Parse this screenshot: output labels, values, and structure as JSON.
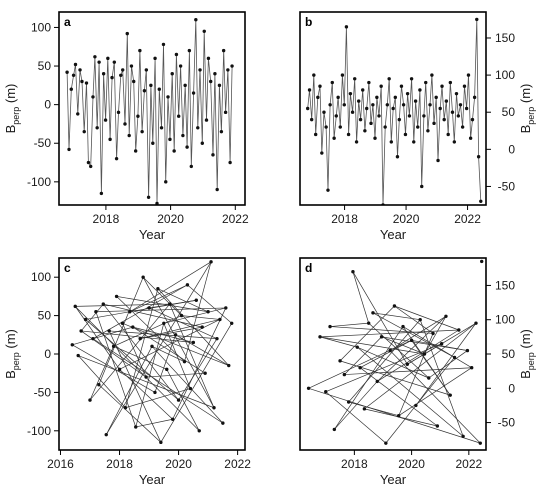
{
  "chart_data": [
    {
      "type": "line",
      "label": "a",
      "xlabel": "Year",
      "ylabel": "B",
      "ylabel_sub": "perp",
      "ylabel_unit": " (m)",
      "yaxis_side": "left",
      "xlim": [
        2016.55,
        2022.3
      ],
      "ylim": [
        -130,
        120
      ],
      "xticks": [
        2018,
        2020,
        2022
      ],
      "yticks": [
        -100,
        -50,
        0,
        50,
        100
      ],
      "series_style": "chronological",
      "x": [
        2016.8,
        2016.86,
        2016.93,
        2017.0,
        2017.06,
        2017.13,
        2017.2,
        2017.26,
        2017.33,
        2017.4,
        2017.46,
        2017.53,
        2017.6,
        2017.66,
        2017.73,
        2017.79,
        2017.86,
        2017.93,
        2017.99,
        2018.06,
        2018.13,
        2018.19,
        2018.26,
        2018.33,
        2018.39,
        2018.46,
        2018.52,
        2018.59,
        2018.66,
        2018.72,
        2018.79,
        2018.86,
        2018.92,
        2018.99,
        2019.05,
        2019.12,
        2019.19,
        2019.25,
        2019.32,
        2019.39,
        2019.45,
        2019.52,
        2019.58,
        2019.65,
        2019.72,
        2019.78,
        2019.85,
        2019.92,
        2019.98,
        2020.05,
        2020.11,
        2020.18,
        2020.25,
        2020.31,
        2020.38,
        2020.45,
        2020.51,
        2020.58,
        2020.64,
        2020.71,
        2020.78,
        2020.84,
        2020.91,
        2020.98,
        2021.04,
        2021.11,
        2021.17,
        2021.24,
        2021.31,
        2021.37,
        2021.44,
        2021.51,
        2021.57,
        2021.64,
        2021.7,
        2021.77,
        2021.84,
        2021.9
      ],
      "y": [
        42,
        -58,
        20,
        38,
        52,
        -12,
        45,
        30,
        -35,
        28,
        -75,
        -80,
        10,
        62,
        -30,
        55,
        -115,
        40,
        -20,
        60,
        -45,
        35,
        55,
        -70,
        -10,
        38,
        45,
        -25,
        92,
        -40,
        50,
        30,
        -60,
        -15,
        70,
        -35,
        18,
        45,
        -120,
        25,
        -50,
        60,
        -128,
        20,
        -30,
        78,
        -100,
        10,
        -45,
        40,
        -60,
        65,
        -15,
        50,
        -40,
        25,
        -55,
        70,
        -80,
        15,
        110,
        -30,
        45,
        -50,
        95,
        -20,
        60,
        30,
        -65,
        40,
        -110,
        25,
        -35,
        70,
        -10,
        45,
        -75,
        50
      ]
    },
    {
      "type": "line",
      "label": "b",
      "xlabel": "Year",
      "ylabel": "B",
      "ylabel_sub": "perp",
      "ylabel_unit": " (m)",
      "yaxis_side": "right",
      "xlim": [
        2016.55,
        2022.6
      ],
      "ylim": [
        -75,
        185
      ],
      "xticks": [
        2018,
        2020,
        2022
      ],
      "yticks": [
        -50,
        0,
        50,
        100,
        150
      ],
      "series_style": "chronological",
      "x": [
        2016.8,
        2016.86,
        2016.93,
        2017.0,
        2017.06,
        2017.13,
        2017.2,
        2017.26,
        2017.33,
        2017.4,
        2017.46,
        2017.53,
        2017.6,
        2017.66,
        2017.73,
        2017.79,
        2017.86,
        2017.93,
        2017.99,
        2018.06,
        2018.13,
        2018.19,
        2018.26,
        2018.33,
        2018.39,
        2018.46,
        2018.52,
        2018.59,
        2018.66,
        2018.72,
        2018.79,
        2018.86,
        2018.92,
        2018.99,
        2019.05,
        2019.12,
        2019.19,
        2019.25,
        2019.32,
        2019.39,
        2019.45,
        2019.52,
        2019.58,
        2019.65,
        2019.72,
        2019.78,
        2019.85,
        2019.92,
        2019.98,
        2020.05,
        2020.11,
        2020.18,
        2020.25,
        2020.31,
        2020.38,
        2020.45,
        2020.51,
        2020.58,
        2020.64,
        2020.71,
        2020.78,
        2020.84,
        2020.91,
        2020.98,
        2021.04,
        2021.11,
        2021.17,
        2021.24,
        2021.31,
        2021.37,
        2021.44,
        2021.51,
        2021.57,
        2021.64,
        2021.7,
        2021.77,
        2021.84,
        2021.9,
        2021.97,
        2022.03,
        2022.1,
        2022.16,
        2022.23,
        2022.3,
        2022.36,
        2022.43
      ],
      "y": [
        55,
        80,
        40,
        100,
        20,
        70,
        85,
        -5,
        50,
        30,
        -55,
        60,
        90,
        15,
        45,
        70,
        30,
        100,
        60,
        165,
        20,
        75,
        50,
        95,
        10,
        65,
        40,
        80,
        25,
        55,
        90,
        35,
        60,
        15,
        70,
        45,
        85,
        -75,
        30,
        60,
        95,
        10,
        55,
        70,
        -10,
        40,
        85,
        60,
        20,
        75,
        45,
        95,
        10,
        65,
        30,
        80,
        -50,
        45,
        90,
        25,
        60,
        100,
        35,
        70,
        -15,
        55,
        85,
        40,
        65,
        20,
        90,
        50,
        10,
        75,
        45,
        60,
        30,
        85,
        55,
        100,
        15,
        40,
        70,
        175,
        -10,
        -70
      ]
    },
    {
      "type": "line",
      "label": "c",
      "xlabel": "Year",
      "ylabel": "B",
      "ylabel_sub": "perp",
      "ylabel_unit": " (m)",
      "yaxis_side": "left",
      "xlim": [
        2015.95,
        2022.25
      ],
      "ylim": [
        -125,
        125
      ],
      "xticks": [
        2016,
        2018,
        2020,
        2022
      ],
      "yticks": [
        -100,
        -50,
        0,
        50,
        100
      ],
      "series_style": "network",
      "x": [
        2016.4,
        2016.5,
        2016.6,
        2016.7,
        2016.85,
        2017.0,
        2017.1,
        2017.2,
        2017.3,
        2017.45,
        2017.55,
        2017.65,
        2017.8,
        2017.9,
        2018.0,
        2018.1,
        2018.2,
        2018.35,
        2018.45,
        2018.55,
        2018.7,
        2018.8,
        2018.9,
        2019.0,
        2019.1,
        2019.2,
        2019.3,
        2019.4,
        2019.5,
        2019.6,
        2019.7,
        2019.8,
        2019.9,
        2020.0,
        2020.1,
        2020.2,
        2020.3,
        2020.4,
        2020.5,
        2020.6,
        2020.7,
        2020.8,
        2020.9,
        2021.0,
        2021.1,
        2021.2,
        2021.3,
        2021.4,
        2021.5,
        2021.6,
        2021.7,
        2021.8
      ],
      "y": [
        12,
        62,
        -2,
        30,
        45,
        -60,
        20,
        55,
        -40,
        65,
        -105,
        30,
        10,
        75,
        -20,
        40,
        -70,
        55,
        35,
        -95,
        20,
        100,
        -30,
        60,
        10,
        -50,
        85,
        -115,
        40,
        -20,
        65,
        -85,
        25,
        -60,
        50,
        -10,
        90,
        -45,
        15,
        70,
        -100,
        35,
        -25,
        55,
        120,
        -70,
        20,
        45,
        -90,
        60,
        -15,
        40
      ],
      "edges": [
        [
          0,
          18
        ],
        [
          1,
          30
        ],
        [
          1,
          40
        ],
        [
          2,
          45
        ],
        [
          3,
          22
        ],
        [
          4,
          33
        ],
        [
          5,
          12
        ],
        [
          6,
          36
        ],
        [
          7,
          49
        ],
        [
          8,
          27
        ],
        [
          9,
          41
        ],
        [
          10,
          24
        ],
        [
          11,
          46
        ],
        [
          12,
          29
        ],
        [
          13,
          35
        ],
        [
          14,
          31
        ],
        [
          15,
          50
        ],
        [
          16,
          26
        ],
        [
          17,
          44
        ],
        [
          18,
          38
        ],
        [
          19,
          28
        ],
        [
          20,
          47
        ],
        [
          21,
          34
        ],
        [
          22,
          42
        ],
        [
          23,
          39
        ],
        [
          24,
          48
        ],
        [
          25,
          32
        ],
        [
          26,
          43
        ],
        [
          27,
          51
        ],
        [
          28,
          37
        ],
        [
          29,
          40
        ],
        [
          30,
          45
        ],
        [
          31,
          49
        ],
        [
          32,
          50
        ],
        [
          33,
          46
        ],
        [
          34,
          47
        ],
        [
          35,
          44
        ],
        [
          36,
          51
        ],
        [
          0,
          25
        ],
        [
          3,
          38
        ],
        [
          5,
          30
        ],
        [
          7,
          19
        ],
        [
          9,
          33
        ],
        [
          11,
          27
        ],
        [
          13,
          43
        ],
        [
          15,
          22
        ],
        [
          17,
          36
        ],
        [
          20,
          41
        ],
        [
          23,
          46
        ],
        [
          2,
          16
        ],
        [
          4,
          39
        ],
        [
          6,
          48
        ],
        [
          8,
          21
        ],
        [
          10,
          44
        ],
        [
          12,
          34
        ],
        [
          14,
          47
        ],
        [
          16,
          37
        ],
        [
          18,
          42
        ],
        [
          19,
          31
        ],
        [
          21,
          45
        ],
        [
          24,
          35
        ],
        [
          26,
          50
        ],
        [
          28,
          49
        ],
        [
          1,
          14
        ],
        [
          3,
          9
        ]
      ]
    },
    {
      "type": "line",
      "label": "d",
      "xlabel": "Year",
      "ylabel": "B",
      "ylabel_sub": "perp",
      "ylabel_unit": " (m)",
      "yaxis_side": "right",
      "xlim": [
        2016.1,
        2022.6
      ],
      "ylim": [
        -90,
        190
      ],
      "xticks": [
        2018,
        2020,
        2022
      ],
      "yticks": [
        -50,
        0,
        50,
        100,
        150
      ],
      "series_style": "network",
      "x": [
        2016.4,
        2016.8,
        2017.0,
        2017.15,
        2017.3,
        2017.5,
        2017.65,
        2017.8,
        2017.95,
        2018.1,
        2018.2,
        2018.35,
        2018.5,
        2018.65,
        2018.8,
        2018.95,
        2019.1,
        2019.25,
        2019.4,
        2019.55,
        2019.7,
        2019.85,
        2020.0,
        2020.15,
        2020.3,
        2020.45,
        2020.6,
        2020.75,
        2020.9,
        2021.05,
        2021.2,
        2021.35,
        2021.5,
        2021.65,
        2021.8,
        2021.95,
        2022.1,
        2022.25,
        2022.4,
        2022.45
      ],
      "y": [
        0,
        75,
        -5,
        90,
        -60,
        40,
        20,
        -20,
        170,
        60,
        30,
        -30,
        95,
        110,
        10,
        75,
        -80,
        55,
        120,
        -40,
        90,
        35,
        70,
        -25,
        100,
        50,
        15,
        80,
        -55,
        65,
        105,
        -10,
        45,
        85,
        -70,
        55,
        30,
        95,
        -80,
        185
      ],
      "edges": [
        [
          0,
          22
        ],
        [
          1,
          25
        ],
        [
          1,
          33
        ],
        [
          2,
          29
        ],
        [
          3,
          27
        ],
        [
          4,
          20
        ],
        [
          5,
          31
        ],
        [
          6,
          36
        ],
        [
          7,
          24
        ],
        [
          8,
          21
        ],
        [
          9,
          34
        ],
        [
          10,
          28
        ],
        [
          11,
          37
        ],
        [
          12,
          26
        ],
        [
          13,
          32
        ],
        [
          14,
          30
        ],
        [
          15,
          35
        ],
        [
          16,
          23
        ],
        [
          17,
          38
        ],
        [
          18,
          33
        ],
        [
          19,
          27
        ],
        [
          20,
          36
        ],
        [
          21,
          29
        ],
        [
          22,
          31
        ],
        [
          23,
          37
        ],
        [
          24,
          34
        ],
        [
          25,
          30
        ],
        [
          26,
          35
        ],
        [
          0,
          38
        ],
        [
          2,
          16
        ],
        [
          3,
          12
        ],
        [
          5,
          18
        ],
        [
          6,
          15
        ],
        [
          7,
          19
        ],
        [
          9,
          26
        ],
        [
          10,
          22
        ],
        [
          11,
          28
        ],
        [
          13,
          24
        ],
        [
          14,
          33
        ],
        [
          17,
          30
        ],
        [
          19,
          36
        ],
        [
          20,
          31
        ],
        [
          21,
          37
        ],
        [
          1,
          9
        ],
        [
          4,
          14
        ],
        [
          8,
          12
        ],
        [
          15,
          25
        ],
        [
          18,
          27
        ],
        [
          22,
          35
        ],
        [
          23,
          32
        ]
      ]
    }
  ]
}
